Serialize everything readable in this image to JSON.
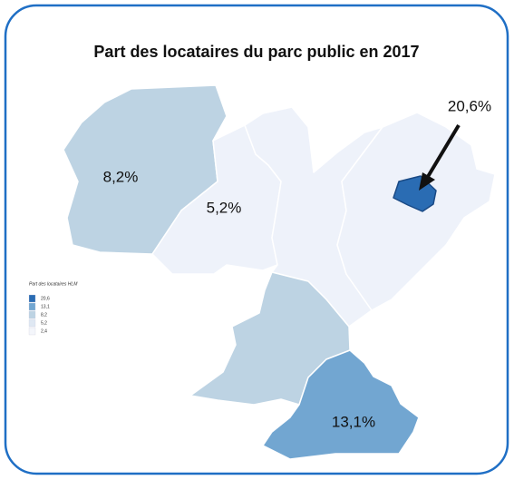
{
  "title": "Part des locataires du parc public en 2017",
  "regions": [
    {
      "label": "8,2%",
      "color": "#bdd3e3"
    },
    {
      "label": "5,2%",
      "color": "#eef2fa"
    },
    {
      "label": "20,6%",
      "color": "#2a6cb3"
    },
    {
      "label": "13,1%",
      "color": "#72a6d1"
    }
  ],
  "legend": {
    "title": "Part des locataires HLM",
    "items": [
      {
        "label": "20,6",
        "color": "#2a6cb3"
      },
      {
        "label": "13,1",
        "color": "#72a6d1"
      },
      {
        "label": "8,2",
        "color": "#bdd3e3"
      },
      {
        "label": "5,2",
        "color": "#dfe8f3"
      },
      {
        "label": "2,4",
        "color": "#f4f6fb"
      }
    ]
  }
}
